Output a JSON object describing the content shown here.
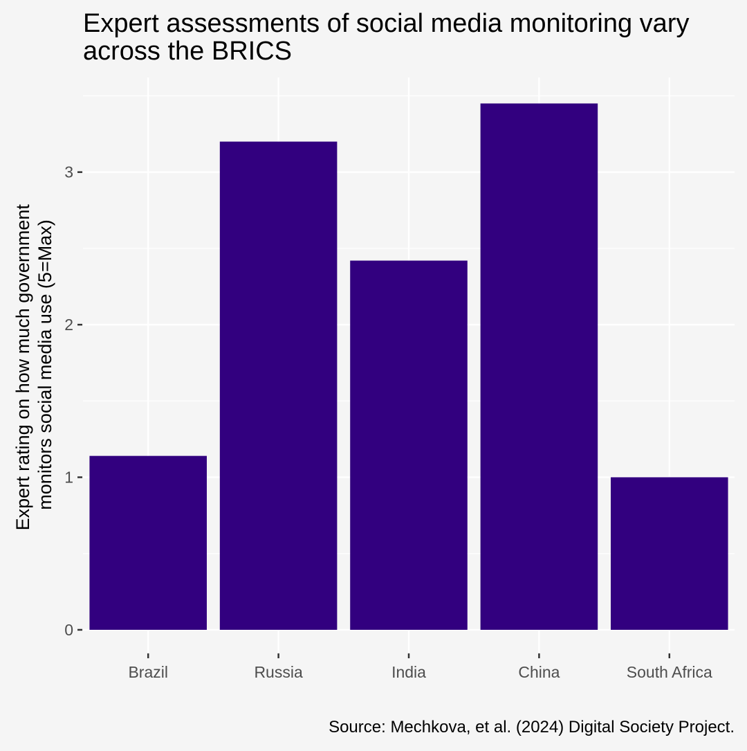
{
  "chart_data": {
    "type": "bar",
    "title": "Expert assessments of social media monitoring vary across the BRICS",
    "title_lines": [
      "Expert assessments of social media monitoring vary",
      "across the BRICS"
    ],
    "xlabel": "",
    "ylabel": "Expert rating on how much government monitors social media use (5=Max)",
    "ylabel_lines": [
      "Expert rating on how much government",
      "monitors social media use (5=Max)"
    ],
    "categories": [
      "Brazil",
      "Russia",
      "India",
      "China",
      "South Africa"
    ],
    "values": [
      1.14,
      3.2,
      2.42,
      3.45,
      1.0
    ],
    "ylim": [
      -0.15,
      3.62
    ],
    "yticks": [
      0,
      1,
      2,
      3
    ],
    "ytick_labels": [
      "0",
      "1",
      "2",
      "3"
    ],
    "grid": true,
    "bar_color": "#32007f",
    "background_color": "#f5f5f5",
    "grid_color": "#ffffff",
    "caption": "Source: Mechkova, et al. (2024) Digital Society Project."
  }
}
